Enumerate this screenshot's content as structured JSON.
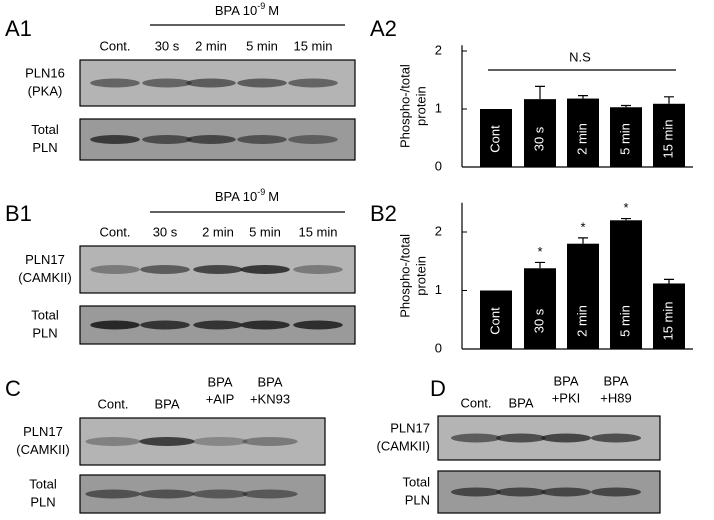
{
  "blots": [
    {
      "label": "A1",
      "treatment": {
        "base": "BPA 10",
        "exponent": "-9",
        "unit": "M"
      },
      "lanes": [
        [
          "Cont."
        ],
        [
          "30 s"
        ],
        [
          "2 min"
        ],
        [
          "5 min"
        ],
        [
          "15 min"
        ]
      ],
      "rows": [
        [
          "PLN16",
          "(PKA)"
        ],
        [
          "Total",
          "PLN"
        ]
      ]
    },
    {
      "label": "B1",
      "treatment": {
        "base": "BPA 10",
        "exponent": "-9",
        "unit": "M"
      },
      "lanes": [
        [
          "Cont."
        ],
        [
          "30 s"
        ],
        [
          "2 min"
        ],
        [
          "5 min"
        ],
        [
          "15 min"
        ]
      ],
      "rows": [
        [
          "PLN17",
          "(CAMKII)"
        ],
        [
          "Total",
          "PLN"
        ]
      ]
    },
    {
      "label": "C",
      "lanes": [
        [
          "Cont."
        ],
        [
          "BPA"
        ],
        [
          "BPA",
          "+AIP"
        ],
        [
          "BPA",
          "+KN93"
        ]
      ],
      "rows": [
        [
          "PLN17",
          "(CAMKII)"
        ],
        [
          "Total",
          "PLN"
        ]
      ]
    },
    {
      "label": "D",
      "lanes": [
        [
          "Cont."
        ],
        [
          "BPA"
        ],
        [
          "BPA",
          "+PKI"
        ],
        [
          "BPA",
          "+H89"
        ]
      ],
      "rows": [
        [
          "PLN17",
          "(CAMKII)"
        ],
        [
          "Total",
          "PLN"
        ]
      ]
    }
  ],
  "chart_data": [
    {
      "type": "bar",
      "label": "A2",
      "ylabel": [
        "Phospho-/total",
        "protein"
      ],
      "categories": [
        "Cont",
        "30 s",
        "2 min",
        "5 min",
        "15 min"
      ],
      "values": [
        1.0,
        1.17,
        1.18,
        1.03,
        1.09
      ],
      "errors": [
        0,
        0.22,
        0.05,
        0.03,
        0.12
      ],
      "annotation": "N.S",
      "color": "#000000",
      "ylim": [
        0,
        2.1
      ],
      "yticks": [
        0,
        1,
        2
      ]
    },
    {
      "type": "bar",
      "label": "B2",
      "ylabel": [
        "Phospho-/total",
        "protein"
      ],
      "categories": [
        "Cont",
        "30 s",
        "2 min",
        "5 min",
        "15 min"
      ],
      "values": [
        1.0,
        1.38,
        1.8,
        2.2,
        1.12
      ],
      "errors": [
        0,
        0.1,
        0.1,
        0.03,
        0.07
      ],
      "significance": [
        null,
        "*",
        "*",
        "*",
        null
      ],
      "color": "#000000",
      "ylim": [
        0,
        2.5
      ],
      "yticks": [
        0,
        1,
        2
      ]
    }
  ]
}
